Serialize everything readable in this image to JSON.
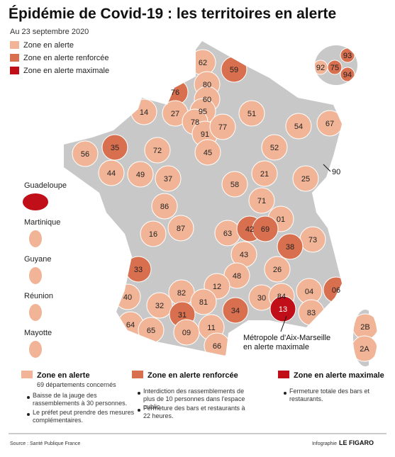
{
  "header": {
    "title": "Épidémie de Covid-19 : les territoires en alerte",
    "date": "Au 23 septembre 2020"
  },
  "legend": [
    {
      "label": "Zone en alerte",
      "color": "#f1b496"
    },
    {
      "label": "Zone en alerte renforcée",
      "color": "#d8704f"
    },
    {
      "label": "Zone en alerte maximale",
      "color": "#c00f18"
    }
  ],
  "departments": [
    {
      "code": "62",
      "zone": 0
    },
    {
      "code": "59",
      "zone": 1
    },
    {
      "code": "80",
      "zone": 0
    },
    {
      "code": "76",
      "zone": 1
    },
    {
      "code": "14",
      "zone": 0
    },
    {
      "code": "27",
      "zone": 0
    },
    {
      "code": "60",
      "zone": 0
    },
    {
      "code": "95",
      "zone": 0
    },
    {
      "code": "78",
      "zone": 0
    },
    {
      "code": "91",
      "zone": 0
    },
    {
      "code": "77",
      "zone": 0
    },
    {
      "code": "51",
      "zone": 0
    },
    {
      "code": "54",
      "zone": 0
    },
    {
      "code": "67",
      "zone": 0
    },
    {
      "code": "56",
      "zone": 0
    },
    {
      "code": "35",
      "zone": 1
    },
    {
      "code": "72",
      "zone": 0
    },
    {
      "code": "45",
      "zone": 0
    },
    {
      "code": "52",
      "zone": 0
    },
    {
      "code": "44",
      "zone": 0
    },
    {
      "code": "49",
      "zone": 0
    },
    {
      "code": "37",
      "zone": 0
    },
    {
      "code": "58",
      "zone": 0
    },
    {
      "code": "21",
      "zone": 0
    },
    {
      "code": "25",
      "zone": 0
    },
    {
      "code": "86",
      "zone": 0
    },
    {
      "code": "71",
      "zone": 0
    },
    {
      "code": "01",
      "zone": 0
    },
    {
      "code": "16",
      "zone": 0
    },
    {
      "code": "87",
      "zone": 0
    },
    {
      "code": "63",
      "zone": 0
    },
    {
      "code": "42",
      "zone": 1
    },
    {
      "code": "69",
      "zone": 1
    },
    {
      "code": "73",
      "zone": 0
    },
    {
      "code": "38",
      "zone": 1
    },
    {
      "code": "43",
      "zone": 0
    },
    {
      "code": "33",
      "zone": 1
    },
    {
      "code": "26",
      "zone": 0
    },
    {
      "code": "48",
      "zone": 0
    },
    {
      "code": "12",
      "zone": 0
    },
    {
      "code": "40",
      "zone": 0
    },
    {
      "code": "82",
      "zone": 0
    },
    {
      "code": "81",
      "zone": 0
    },
    {
      "code": "30",
      "zone": 0
    },
    {
      "code": "84",
      "zone": 0
    },
    {
      "code": "04",
      "zone": 0
    },
    {
      "code": "06",
      "zone": 1
    },
    {
      "code": "32",
      "zone": 0
    },
    {
      "code": "31",
      "zone": 1
    },
    {
      "code": "34",
      "zone": 1
    },
    {
      "code": "13",
      "zone": 2
    },
    {
      "code": "83",
      "zone": 0
    },
    {
      "code": "64",
      "zone": 0
    },
    {
      "code": "65",
      "zone": 0
    },
    {
      "code": "09",
      "zone": 0
    },
    {
      "code": "11",
      "zone": 0
    },
    {
      "code": "66",
      "zone": 0
    },
    {
      "code": "2B",
      "zone": 0
    },
    {
      "code": "2A",
      "zone": 0
    },
    {
      "code": "93",
      "zone": 1
    },
    {
      "code": "92",
      "zone": 0
    },
    {
      "code": "75",
      "zone": 1
    },
    {
      "code": "94",
      "zone": 1
    }
  ],
  "outside_label": "90",
  "overseas": [
    {
      "name": "Guadeloupe",
      "zone": 2
    },
    {
      "name": "Martinique",
      "zone": 0
    },
    {
      "name": "Guyane",
      "zone": 0
    },
    {
      "name": "Réunion",
      "zone": 0
    },
    {
      "name": "Mayotte",
      "zone": 0
    }
  ],
  "annotation": [
    "Métropole d'Aix-Marseille",
    "en alerte maximale"
  ],
  "explanations": [
    {
      "subtitle": "69 départements concernés",
      "bullets": [
        "Baisse de la jauge des rassemblements à 30 personnes.",
        "Le préfet peut prendre des mesures complémentaires."
      ]
    },
    {
      "bullets": [
        "Interdiction des rassemblements de plus de 10 personnes dans l'espace public.",
        "Fermeture des bars et restaurants à 22 heures."
      ]
    },
    {
      "bullets": [
        "Fermeture totale des bars et restaurants."
      ]
    }
  ],
  "footer": {
    "source": "Source : Santé Publique France",
    "credit": "Infographie",
    "brand": "LE FIGARO"
  }
}
